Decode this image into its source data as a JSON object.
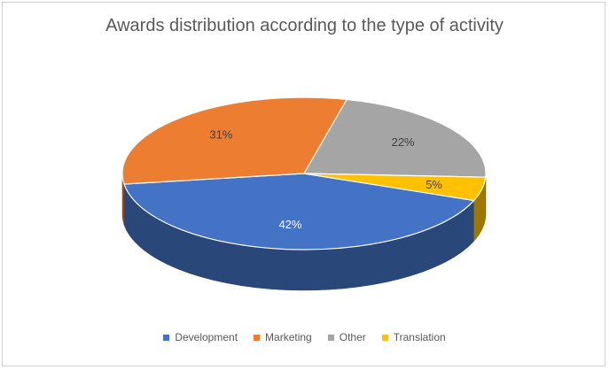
{
  "chart_data": {
    "type": "pie",
    "title": "Awards distribution according to the type of activity",
    "categories": [
      "Development",
      "Marketing",
      "Other",
      "Translation"
    ],
    "values": [
      42,
      31,
      22,
      5
    ],
    "labels": [
      "42%",
      "31%",
      "22%",
      "5%"
    ],
    "colors": [
      "#4472c4",
      "#ed7d31",
      "#a5a5a5",
      "#ffc000"
    ],
    "legend_position": "bottom",
    "style": "3d"
  }
}
